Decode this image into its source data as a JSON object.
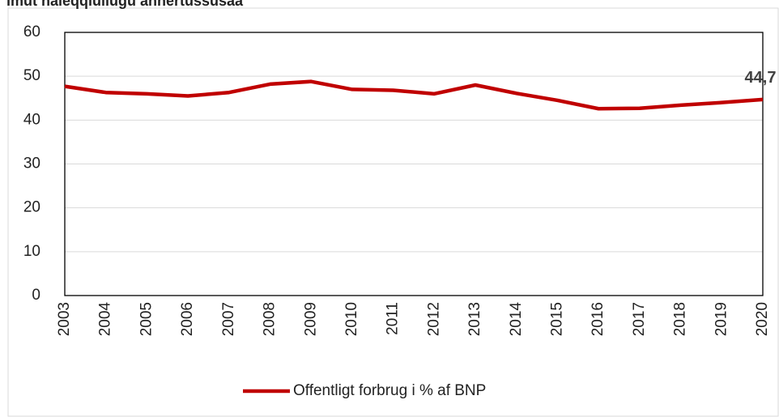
{
  "chart_data": {
    "type": "line",
    "title": "imut naleqqiullugu annertussusaa",
    "categories": [
      "2003",
      "2004",
      "2005",
      "2006",
      "2007",
      "2008",
      "2009",
      "2010",
      "2011",
      "2012",
      "2013",
      "2014",
      "2015",
      "2016",
      "2017",
      "2018",
      "2019",
      "2020"
    ],
    "series": [
      {
        "name": "Offentligt forbrug i % af BNP",
        "color": "#c00000",
        "values": [
          47.7,
          46.3,
          46.0,
          45.5,
          46.3,
          48.2,
          48.8,
          47.0,
          46.8,
          46.0,
          48.0,
          46.1,
          44.5,
          42.6,
          42.7,
          43.4,
          44.0,
          44.7
        ],
        "value_labels": [
          null,
          null,
          null,
          null,
          null,
          null,
          null,
          null,
          null,
          null,
          null,
          null,
          null,
          null,
          null,
          null,
          null,
          "44,7"
        ]
      }
    ],
    "ylim": [
      0,
      60
    ],
    "yticks": [
      0,
      10,
      20,
      30,
      40,
      50,
      60
    ],
    "grid": true,
    "legend": "bottom"
  }
}
